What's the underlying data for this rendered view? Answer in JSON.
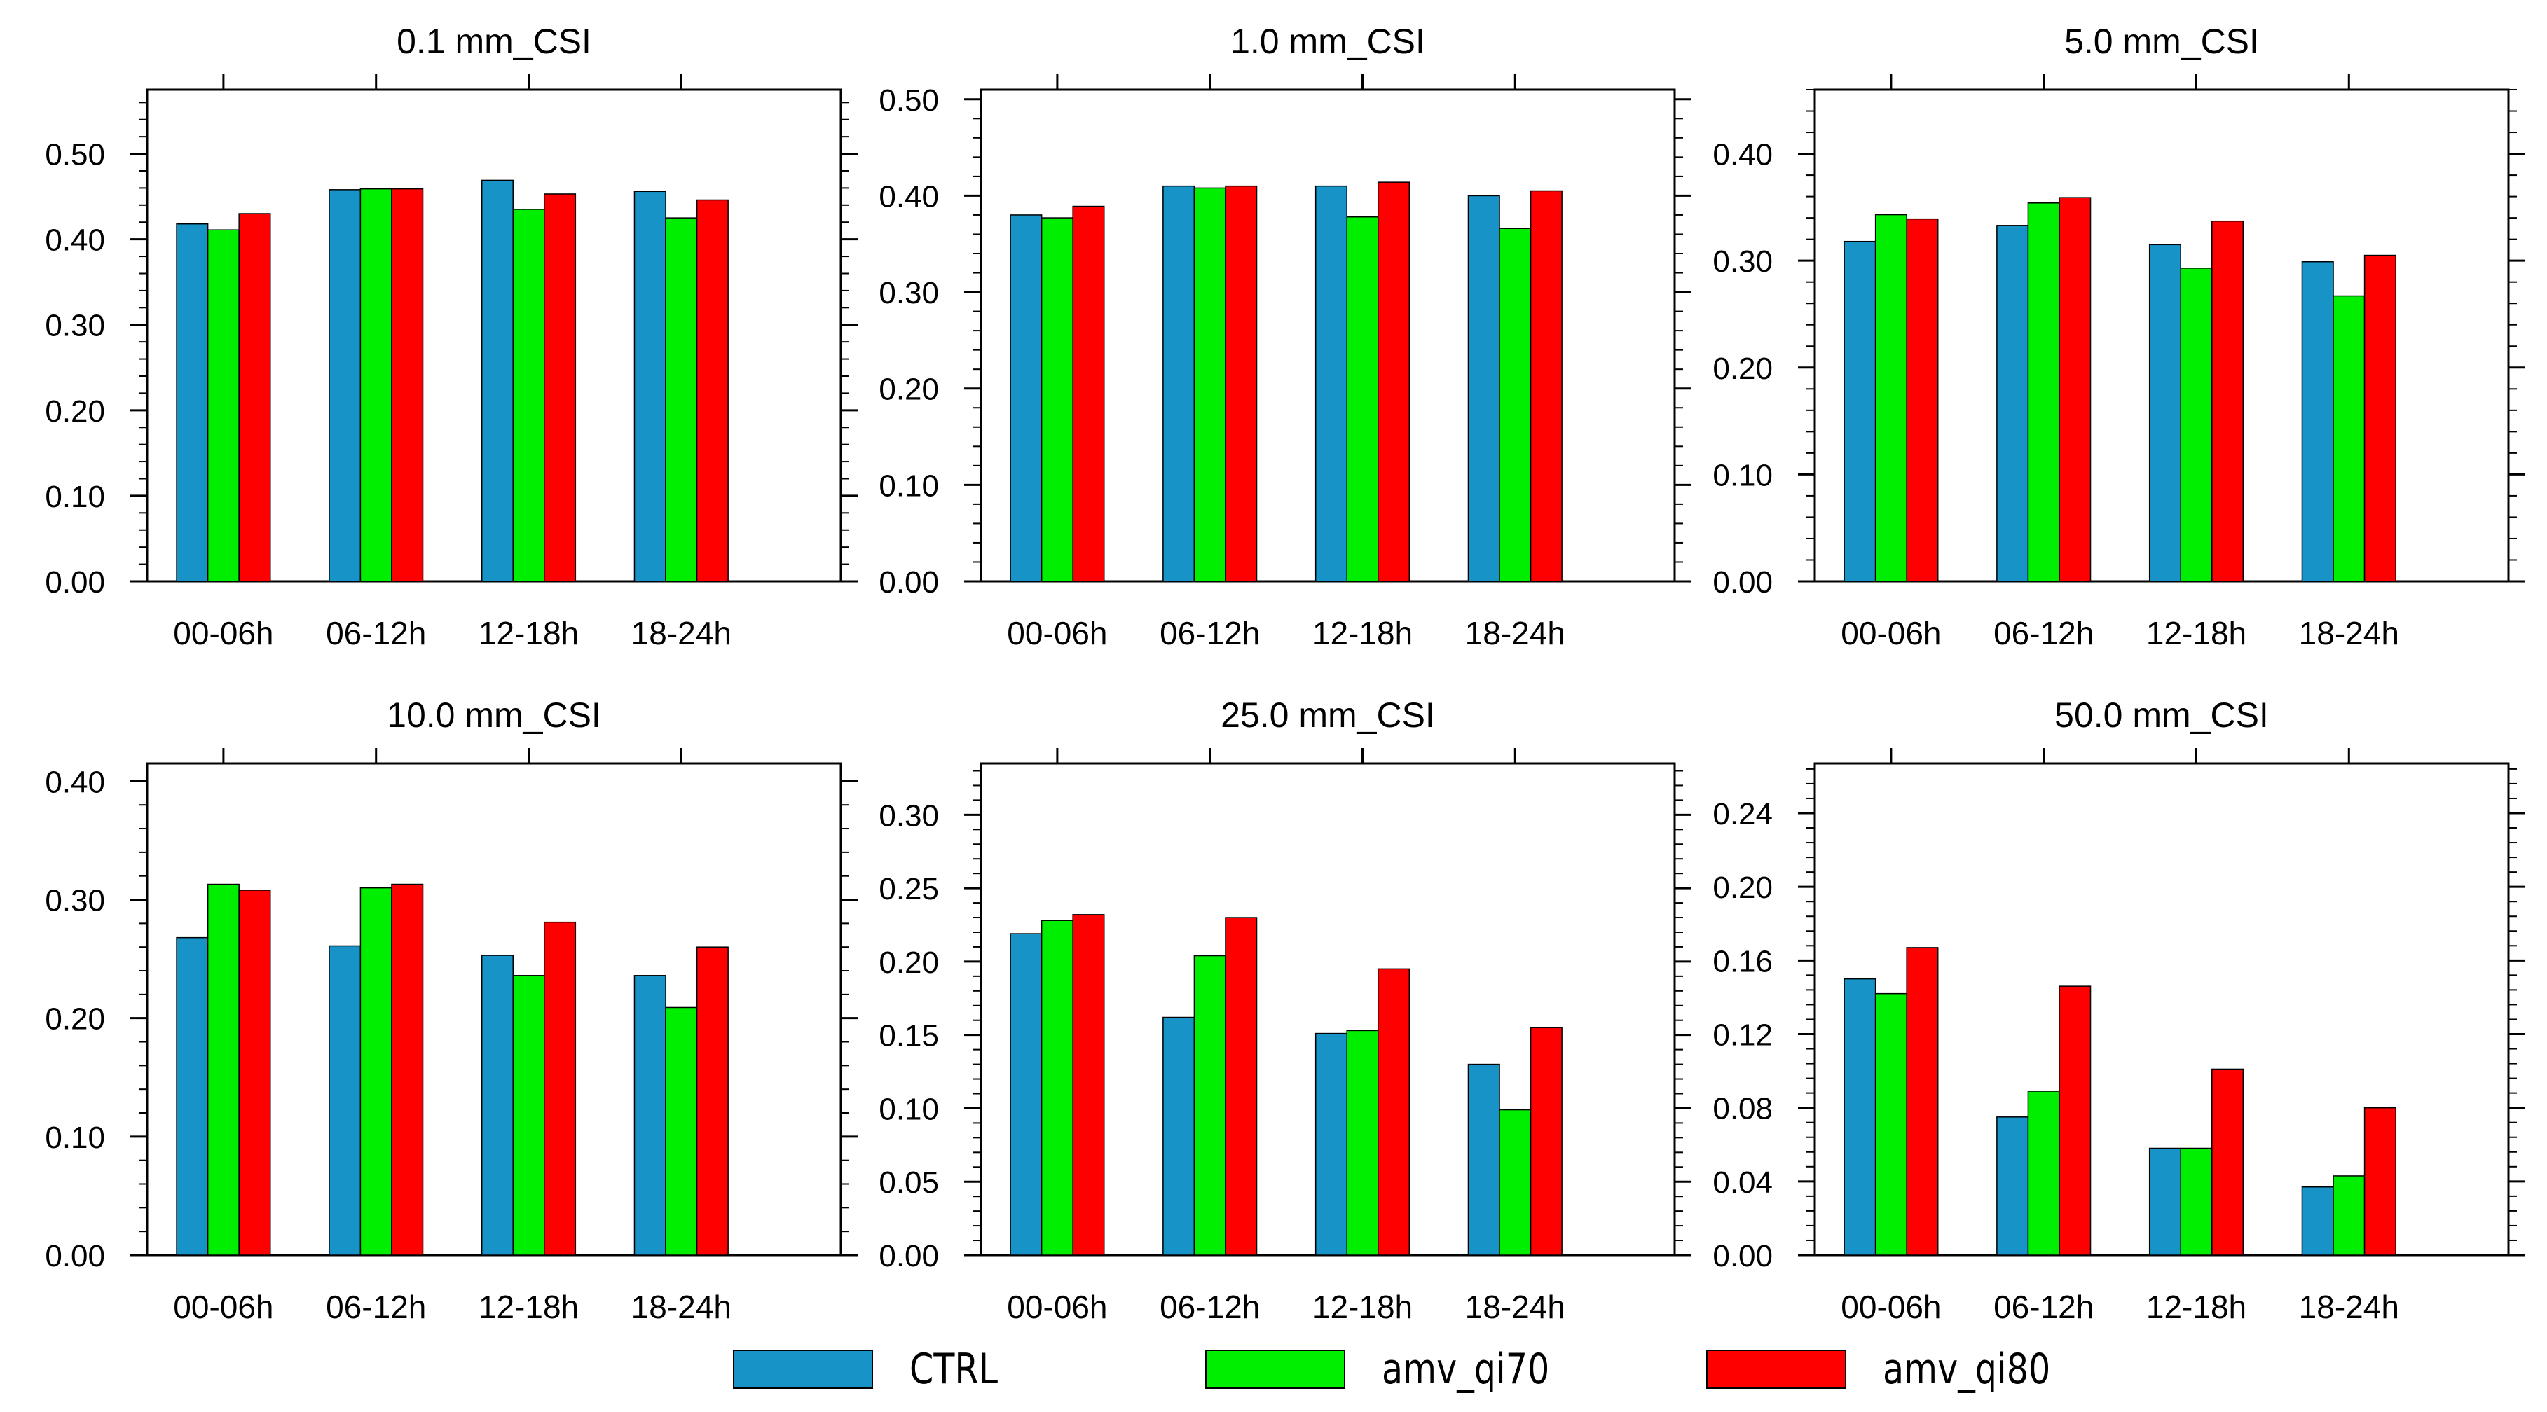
{
  "chart_data": [
    {
      "type": "bar",
      "title": "0.1 mm_CSI",
      "categories": [
        "00-06h",
        "06-12h",
        "12-18h",
        "18-24h"
      ],
      "series": [
        {
          "name": "CTRL",
          "values": [
            0.418,
            0.458,
            0.469,
            0.456
          ]
        },
        {
          "name": "amv_qi70",
          "values": [
            0.411,
            0.459,
            0.435,
            0.425
          ]
        },
        {
          "name": "amv_qi80",
          "values": [
            0.43,
            0.459,
            0.453,
            0.446
          ]
        }
      ],
      "ylim": [
        0,
        0.575
      ],
      "yticks": [
        0.0,
        0.1,
        0.2,
        0.3,
        0.4,
        0.5
      ],
      "ytick_labels": [
        "0.00",
        "0.10",
        "0.20",
        "0.30",
        "0.40",
        "0.50"
      ],
      "ytick_side": "left"
    },
    {
      "type": "bar",
      "title": "1.0 mm_CSI",
      "categories": [
        "00-06h",
        "06-12h",
        "12-18h",
        "18-24h"
      ],
      "series": [
        {
          "name": "CTRL",
          "values": [
            0.38,
            0.41,
            0.41,
            0.4
          ]
        },
        {
          "name": "amv_qi70",
          "values": [
            0.377,
            0.408,
            0.378,
            0.366
          ]
        },
        {
          "name": "amv_qi80",
          "values": [
            0.389,
            0.41,
            0.414,
            0.405
          ]
        }
      ],
      "ylim": [
        0,
        0.51
      ],
      "yticks": [
        0.0,
        0.1,
        0.2,
        0.3,
        0.4,
        0.5
      ],
      "ytick_labels": [
        "0.00",
        "0.10",
        "0.20",
        "0.30",
        "0.40",
        "0.50"
      ],
      "ytick_side": "left"
    },
    {
      "type": "bar",
      "title": "5.0 mm_CSI",
      "categories": [
        "00-06h",
        "06-12h",
        "12-18h",
        "18-24h"
      ],
      "series": [
        {
          "name": "CTRL",
          "values": [
            0.318,
            0.333,
            0.315,
            0.299
          ]
        },
        {
          "name": "amv_qi70",
          "values": [
            0.343,
            0.354,
            0.293,
            0.267
          ]
        },
        {
          "name": "amv_qi80",
          "values": [
            0.339,
            0.359,
            0.337,
            0.305
          ]
        }
      ],
      "ylim": [
        0,
        0.46
      ],
      "yticks": [
        0.0,
        0.1,
        0.2,
        0.3,
        0.4
      ],
      "ytick_labels": [
        "0.00",
        "0.10",
        "0.20",
        "0.30",
        "0.40"
      ],
      "ytick_side": "left"
    },
    {
      "type": "bar",
      "title": "10.0 mm_CSI",
      "categories": [
        "00-06h",
        "06-12h",
        "12-18h",
        "18-24h"
      ],
      "series": [
        {
          "name": "CTRL",
          "values": [
            0.268,
            0.261,
            0.253,
            0.236
          ]
        },
        {
          "name": "amv_qi70",
          "values": [
            0.313,
            0.31,
            0.236,
            0.209
          ]
        },
        {
          "name": "amv_qi80",
          "values": [
            0.308,
            0.313,
            0.281,
            0.26
          ]
        }
      ],
      "ylim": [
        0,
        0.415
      ],
      "yticks": [
        0.0,
        0.1,
        0.2,
        0.3,
        0.4
      ],
      "ytick_labels": [
        "0.00",
        "0.10",
        "0.20",
        "0.30",
        "0.40"
      ],
      "ytick_side": "left"
    },
    {
      "type": "bar",
      "title": "25.0 mm_CSI",
      "categories": [
        "00-06h",
        "06-12h",
        "12-18h",
        "18-24h"
      ],
      "series": [
        {
          "name": "CTRL",
          "values": [
            0.219,
            0.162,
            0.151,
            0.13
          ]
        },
        {
          "name": "amv_qi70",
          "values": [
            0.228,
            0.204,
            0.153,
            0.099
          ]
        },
        {
          "name": "amv_qi80",
          "values": [
            0.232,
            0.23,
            0.195,
            0.155
          ]
        }
      ],
      "ylim": [
        0,
        0.335
      ],
      "yticks": [
        0.0,
        0.05,
        0.1,
        0.15,
        0.2,
        0.25,
        0.3
      ],
      "ytick_labels": [
        "0.00",
        "0.05",
        "0.10",
        "0.15",
        "0.20",
        "0.25",
        "0.30"
      ],
      "ytick_side": "left"
    },
    {
      "type": "bar",
      "title": "50.0 mm_CSI",
      "categories": [
        "00-06h",
        "06-12h",
        "12-18h",
        "18-24h"
      ],
      "series": [
        {
          "name": "CTRL",
          "values": [
            0.15,
            0.075,
            0.058,
            0.037
          ]
        },
        {
          "name": "amv_qi70",
          "values": [
            0.142,
            0.089,
            0.058,
            0.043
          ]
        },
        {
          "name": "amv_qi80",
          "values": [
            0.167,
            0.146,
            0.101,
            0.08
          ]
        }
      ],
      "ylim": [
        0,
        0.267
      ],
      "yticks": [
        0.0,
        0.04,
        0.08,
        0.12,
        0.16,
        0.2,
        0.24
      ],
      "ytick_labels": [
        "0.00",
        "0.04",
        "0.08",
        "0.12",
        "0.16",
        "0.20",
        "0.24"
      ],
      "ytick_side": "left"
    }
  ],
  "legend": {
    "items": [
      {
        "name": "CTRL",
        "color": "#1793c8"
      },
      {
        "name": "amv_qi70",
        "color": "#00ee00"
      },
      {
        "name": "amv_qi80",
        "color": "#ff0000"
      }
    ]
  }
}
